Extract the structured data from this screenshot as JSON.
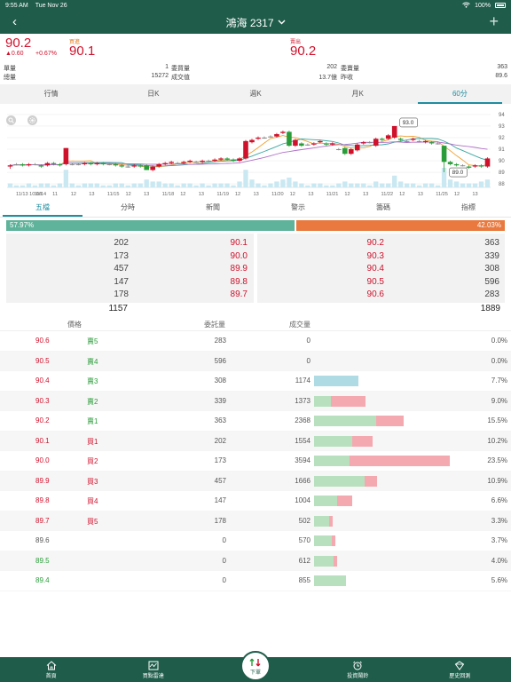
{
  "status_bar": {
    "time": "9:55 AM",
    "date": "Tue Nov 26",
    "battery": "100%"
  },
  "nav": {
    "title": "鴻海 2317"
  },
  "quote": {
    "price": "90.2",
    "change": "▲0.60",
    "change_pct": "+0.67%",
    "buy_label": "買進",
    "buy_price": "90.1",
    "sell_label": "賣出",
    "sell_price": "90.2",
    "row1": {
      "l_label": "單量",
      "l_value": "1",
      "m_label": "委買量",
      "m_value": "202",
      "r_label": "委賣量",
      "r_value": "363"
    },
    "row2": {
      "l_label": "總量",
      "l_value": "15272",
      "m_label": "成交值",
      "m_value": "13.7億",
      "r_label": "昨收",
      "r_value": "89.6"
    }
  },
  "period_tabs": [
    "行情",
    "日K",
    "週K",
    "月K",
    "60分"
  ],
  "chart_data": {
    "type": "candlestick",
    "y_ticks": [
      "94",
      "93",
      "92",
      "91",
      "90",
      "89",
      "88"
    ],
    "ylim": [
      87.7,
      94.3
    ],
    "x_labels": [
      "11/13 10:00",
      "11/14",
      "11",
      "12",
      "13",
      "11/15",
      "12",
      "13",
      "11/18",
      "12",
      "13",
      "11/19",
      "12",
      "13",
      "11/20",
      "12",
      "13",
      "11/21",
      "12",
      "13",
      "11/22",
      "12",
      "13",
      "11/25",
      "12",
      "13"
    ],
    "annotations": [
      "93.0",
      "89.0"
    ],
    "candles": [
      {
        "o": 89.5,
        "c": 89.6,
        "h": 89.7,
        "l": 89.3,
        "v": 2
      },
      {
        "o": 89.7,
        "c": 89.7,
        "h": 89.8,
        "l": 89.6,
        "v": 1
      },
      {
        "o": 89.7,
        "c": 89.6,
        "h": 89.8,
        "l": 89.5,
        "v": 1
      },
      {
        "o": 89.6,
        "c": 89.7,
        "h": 89.8,
        "l": 89.5,
        "v": 2
      },
      {
        "o": 89.7,
        "c": 89.7,
        "h": 89.8,
        "l": 89.6,
        "v": 1
      },
      {
        "o": 89.6,
        "c": 89.5,
        "h": 89.7,
        "l": 89.4,
        "v": 2
      },
      {
        "o": 89.6,
        "c": 89.8,
        "h": 89.9,
        "l": 89.5,
        "v": 2
      },
      {
        "o": 89.8,
        "c": 89.7,
        "h": 89.9,
        "l": 89.6,
        "v": 1
      },
      {
        "o": 89.7,
        "c": 89.6,
        "h": 89.8,
        "l": 89.5,
        "v": 2
      },
      {
        "o": 89.7,
        "c": 91.1,
        "h": 91.1,
        "l": 89.6,
        "v": 9
      },
      {
        "o": 89.7,
        "c": 89.7,
        "h": 89.8,
        "l": 89.6,
        "v": 2
      },
      {
        "o": 89.7,
        "c": 89.7,
        "h": 89.8,
        "l": 89.6,
        "v": 1
      },
      {
        "o": 89.7,
        "c": 89.8,
        "h": 89.9,
        "l": 89.6,
        "v": 2
      },
      {
        "o": 89.8,
        "c": 89.7,
        "h": 89.9,
        "l": 89.6,
        "v": 2
      },
      {
        "o": 89.7,
        "c": 89.8,
        "h": 89.9,
        "l": 89.6,
        "v": 2
      },
      {
        "o": 89.8,
        "c": 89.7,
        "h": 89.9,
        "l": 89.6,
        "v": 1
      },
      {
        "o": 89.7,
        "c": 89.7,
        "h": 89.8,
        "l": 89.6,
        "v": 1
      },
      {
        "o": 89.7,
        "c": 89.6,
        "h": 89.8,
        "l": 89.5,
        "v": 2
      },
      {
        "o": 89.6,
        "c": 89.5,
        "h": 89.7,
        "l": 89.4,
        "v": 2
      },
      {
        "o": 89.5,
        "c": 89.5,
        "h": 89.6,
        "l": 89.4,
        "v": 1
      },
      {
        "o": 89.5,
        "c": 89.6,
        "h": 89.7,
        "l": 89.4,
        "v": 2
      },
      {
        "o": 89.6,
        "c": 89.5,
        "h": 89.7,
        "l": 89.4,
        "v": 2
      },
      {
        "o": 89.6,
        "c": 89.2,
        "h": 89.7,
        "l": 89.2,
        "v": 4
      },
      {
        "o": 89.2,
        "c": 89.5,
        "h": 89.6,
        "l": 89.1,
        "v": 3
      },
      {
        "o": 89.5,
        "c": 89.7,
        "h": 89.8,
        "l": 89.4,
        "v": 3
      },
      {
        "o": 89.7,
        "c": 89.8,
        "h": 89.9,
        "l": 89.6,
        "v": 2
      },
      {
        "o": 89.8,
        "c": 89.9,
        "h": 90.0,
        "l": 89.7,
        "v": 2
      },
      {
        "o": 89.8,
        "c": 89.8,
        "h": 89.9,
        "l": 89.7,
        "v": 1
      },
      {
        "o": 89.8,
        "c": 89.9,
        "h": 90.0,
        "l": 89.7,
        "v": 2
      },
      {
        "o": 89.9,
        "c": 90.0,
        "h": 90.1,
        "l": 89.8,
        "v": 2
      },
      {
        "o": 89.9,
        "c": 89.9,
        "h": 90.0,
        "l": 89.8,
        "v": 1
      },
      {
        "o": 89.9,
        "c": 90.0,
        "h": 90.1,
        "l": 89.8,
        "v": 2
      },
      {
        "o": 90.0,
        "c": 90.0,
        "h": 90.1,
        "l": 89.9,
        "v": 1
      },
      {
        "o": 90.0,
        "c": 90.1,
        "h": 90.2,
        "l": 89.9,
        "v": 2
      },
      {
        "o": 90.1,
        "c": 90.2,
        "h": 90.3,
        "l": 90.0,
        "v": 2
      },
      {
        "o": 90.2,
        "c": 90.1,
        "h": 90.3,
        "l": 90.0,
        "v": 2
      },
      {
        "o": 90.1,
        "c": 90.0,
        "h": 90.2,
        "l": 89.9,
        "v": 1
      },
      {
        "o": 90.0,
        "c": 90.2,
        "h": 90.3,
        "l": 89.9,
        "v": 3
      },
      {
        "o": 90.2,
        "c": 91.7,
        "h": 91.8,
        "l": 90.1,
        "v": 9
      },
      {
        "o": 91.6,
        "c": 91.8,
        "h": 91.9,
        "l": 91.5,
        "v": 4
      },
      {
        "o": 91.9,
        "c": 92.0,
        "h": 92.1,
        "l": 91.8,
        "v": 2
      },
      {
        "o": 92.0,
        "c": 92.0,
        "h": 92.1,
        "l": 91.9,
        "v": 1
      },
      {
        "o": 92.1,
        "c": 92.1,
        "h": 92.2,
        "l": 92.0,
        "v": 2
      },
      {
        "o": 92.1,
        "c": 92.3,
        "h": 92.4,
        "l": 92.0,
        "v": 3
      },
      {
        "o": 92.4,
        "c": 92.5,
        "h": 92.6,
        "l": 92.3,
        "v": 4
      },
      {
        "o": 92.5,
        "c": 91.3,
        "h": 92.6,
        "l": 91.2,
        "v": 5
      },
      {
        "o": 91.3,
        "c": 91.8,
        "h": 91.9,
        "l": 91.2,
        "v": 3
      },
      {
        "o": 91.5,
        "c": 91.3,
        "h": 91.6,
        "l": 91.2,
        "v": 2
      },
      {
        "o": 91.4,
        "c": 91.4,
        "h": 91.5,
        "l": 91.3,
        "v": 1
      },
      {
        "o": 91.4,
        "c": 91.5,
        "h": 91.6,
        "l": 91.3,
        "v": 2
      },
      {
        "o": 91.6,
        "c": 91.7,
        "h": 91.8,
        "l": 91.5,
        "v": 2
      },
      {
        "o": 91.5,
        "c": 91.4,
        "h": 91.6,
        "l": 91.3,
        "v": 1
      },
      {
        "o": 91.4,
        "c": 91.5,
        "h": 91.6,
        "l": 91.3,
        "v": 1
      },
      {
        "o": 91.0,
        "c": 91.0,
        "h": 91.1,
        "l": 90.9,
        "v": 2
      },
      {
        "o": 91.1,
        "c": 90.6,
        "h": 91.2,
        "l": 90.5,
        "v": 3
      },
      {
        "o": 90.6,
        "c": 91.0,
        "h": 91.1,
        "l": 90.5,
        "v": 2
      },
      {
        "o": 90.9,
        "c": 91.4,
        "h": 91.5,
        "l": 90.8,
        "v": 2
      },
      {
        "o": 91.5,
        "c": 91.6,
        "h": 91.7,
        "l": 91.4,
        "v": 2
      },
      {
        "o": 91.6,
        "c": 91.6,
        "h": 91.7,
        "l": 91.5,
        "v": 1
      },
      {
        "o": 91.3,
        "c": 91.9,
        "h": 92.0,
        "l": 91.2,
        "v": 3
      },
      {
        "o": 91.9,
        "c": 91.8,
        "h": 92.0,
        "l": 91.7,
        "v": 2
      },
      {
        "o": 91.9,
        "c": 92.2,
        "h": 92.3,
        "l": 91.8,
        "v": 2
      },
      {
        "o": 92.0,
        "c": 93.0,
        "h": 93.0,
        "l": 91.9,
        "v": 6
      },
      {
        "o": 91.9,
        "c": 91.8,
        "h": 92.0,
        "l": 91.7,
        "v": 3
      },
      {
        "o": 91.7,
        "c": 91.7,
        "h": 91.8,
        "l": 91.6,
        "v": 2
      },
      {
        "o": 91.8,
        "c": 91.9,
        "h": 92.0,
        "l": 91.7,
        "v": 2
      },
      {
        "o": 91.7,
        "c": 91.7,
        "h": 91.8,
        "l": 91.6,
        "v": 1
      },
      {
        "o": 91.6,
        "c": 91.7,
        "h": 91.8,
        "l": 91.5,
        "v": 2
      },
      {
        "o": 91.6,
        "c": 91.5,
        "h": 91.7,
        "l": 91.4,
        "v": 2
      },
      {
        "o": 91.5,
        "c": 91.5,
        "h": 91.6,
        "l": 91.4,
        "v": 1
      },
      {
        "o": 91.3,
        "c": 89.9,
        "h": 91.3,
        "l": 89.0,
        "v": 10
      },
      {
        "o": 89.9,
        "c": 89.7,
        "h": 90.0,
        "l": 89.6,
        "v": 4
      },
      {
        "o": 89.7,
        "c": 89.6,
        "h": 89.8,
        "l": 89.5,
        "v": 3
      },
      {
        "o": 89.6,
        "c": 89.6,
        "h": 89.7,
        "l": 89.5,
        "v": 2
      },
      {
        "o": 89.5,
        "c": 89.4,
        "h": 89.6,
        "l": 89.3,
        "v": 2
      },
      {
        "o": 89.5,
        "c": 89.6,
        "h": 89.7,
        "l": 89.4,
        "v": 2
      },
      {
        "o": 89.6,
        "c": 89.5,
        "h": 89.7,
        "l": 89.4,
        "v": 3
      },
      {
        "o": 89.5,
        "c": 90.2,
        "h": 90.3,
        "l": 89.4,
        "v": 4
      }
    ]
  },
  "detail_tabs": [
    "五檔",
    "分時",
    "新聞",
    "警示",
    "籌碼",
    "指標"
  ],
  "ratio": {
    "left": "57.97%",
    "right": "42.03%",
    "left_value": 57.97
  },
  "book": {
    "bids": [
      {
        "qty": "202",
        "price": "90.1"
      },
      {
        "qty": "173",
        "price": "90.0"
      },
      {
        "qty": "457",
        "price": "89.9"
      },
      {
        "qty": "147",
        "price": "89.8"
      },
      {
        "qty": "178",
        "price": "89.7"
      }
    ],
    "asks": [
      {
        "price": "90.2",
        "qty": "363"
      },
      {
        "price": "90.3",
        "qty": "339"
      },
      {
        "price": "90.4",
        "qty": "308"
      },
      {
        "price": "90.5",
        "qty": "596"
      },
      {
        "price": "90.6",
        "qty": "283"
      }
    ],
    "bid_total": "1157",
    "ask_total": "1889"
  },
  "dist_header": {
    "price": "價格",
    "orders": "委託量",
    "volume": "成交量"
  },
  "dist_rows": [
    {
      "price": "90.6",
      "price_color": "#d0112b",
      "level": "賣5",
      "level_color": "#2a9d3a",
      "orders": "283",
      "volume": "0",
      "green": 0,
      "red": 0,
      "blue": 0,
      "pct": "0.0%"
    },
    {
      "price": "90.5",
      "price_color": "#d0112b",
      "level": "賣4",
      "level_color": "#2a9d3a",
      "orders": "596",
      "volume": "0",
      "green": 0,
      "red": 0,
      "blue": 0,
      "pct": "0.0%"
    },
    {
      "price": "90.4",
      "price_color": "#d0112b",
      "level": "賣3",
      "level_color": "#2a9d3a",
      "orders": "308",
      "volume": "1174",
      "green": 0,
      "red": 0,
      "blue": 1174,
      "pct": "7.7%"
    },
    {
      "price": "90.3",
      "price_color": "#d0112b",
      "level": "賣2",
      "level_color": "#2a9d3a",
      "orders": "339",
      "volume": "1373",
      "green": 453,
      "red": 920,
      "blue": 0,
      "pct": "9.0%"
    },
    {
      "price": "90.2",
      "price_color": "#d0112b",
      "level": "賣1",
      "level_color": "#2a9d3a",
      "orders": "363",
      "volume": "2368",
      "green": 1650,
      "red": 718,
      "blue": 0,
      "pct": "15.5%"
    },
    {
      "price": "90.1",
      "price_color": "#d0112b",
      "level": "買1",
      "level_color": "#d0112b",
      "orders": "202",
      "volume": "1554",
      "green": 1020,
      "red": 534,
      "blue": 0,
      "pct": "10.2%"
    },
    {
      "price": "90.0",
      "price_color": "#d0112b",
      "level": "買2",
      "level_color": "#d0112b",
      "orders": "173",
      "volume": "3594",
      "green": 950,
      "red": 2644,
      "blue": 0,
      "pct": "23.5%"
    },
    {
      "price": "89.9",
      "price_color": "#d0112b",
      "level": "買3",
      "level_color": "#d0112b",
      "orders": "457",
      "volume": "1666",
      "green": 1330,
      "red": 336,
      "blue": 0,
      "pct": "10.9%"
    },
    {
      "price": "89.8",
      "price_color": "#d0112b",
      "level": "買4",
      "level_color": "#d0112b",
      "orders": "147",
      "volume": "1004",
      "green": 600,
      "red": 404,
      "blue": 0,
      "pct": "6.6%"
    },
    {
      "price": "89.7",
      "price_color": "#d0112b",
      "level": "買5",
      "level_color": "#d0112b",
      "orders": "178",
      "volume": "502",
      "green": 400,
      "red": 102,
      "blue": 0,
      "pct": "3.3%"
    },
    {
      "price": "89.6",
      "price_color": "#555555",
      "level": "",
      "level_color": "#555555",
      "orders": "0",
      "volume": "570",
      "green": 470,
      "red": 100,
      "blue": 0,
      "pct": "3.7%"
    },
    {
      "price": "89.5",
      "price_color": "#2a9d3a",
      "level": "",
      "level_color": "#2a9d3a",
      "orders": "0",
      "volume": "612",
      "green": 512,
      "red": 100,
      "blue": 0,
      "pct": "4.0%"
    },
    {
      "price": "89.4",
      "price_color": "#2a9d3a",
      "level": "",
      "level_color": "#2a9d3a",
      "orders": "0",
      "volume": "855",
      "green": 855,
      "red": 0,
      "blue": 0,
      "pct": "5.6%"
    }
  ],
  "dist_max_volume": 4700,
  "footer": {
    "home": "首頁",
    "radar": "買點雷達",
    "order": "下單",
    "invest": "投資鬧鈴",
    "history": "歷史回測"
  },
  "colors": {
    "brand": "#1f5c4a",
    "up": "#d0112b",
    "down": "#2a9d3a",
    "accent": "#1f8ea0"
  }
}
